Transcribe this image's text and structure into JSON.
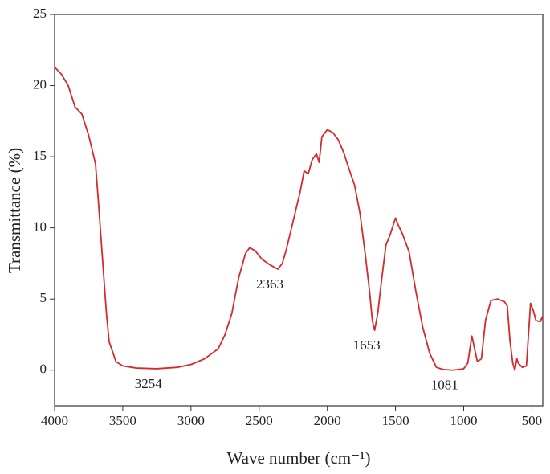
{
  "chart_data": {
    "type": "line",
    "xlabel": "Wave number (cm⁻¹)",
    "ylabel": "Transmittance (%)",
    "x": [
      4000,
      3950,
      3900,
      3850,
      3800,
      3750,
      3700,
      3680,
      3650,
      3620,
      3600,
      3550,
      3500,
      3400,
      3254,
      3100,
      3000,
      2900,
      2800,
      2750,
      2700,
      2650,
      2600,
      2570,
      2530,
      2480,
      2420,
      2363,
      2330,
      2300,
      2250,
      2200,
      2170,
      2140,
      2110,
      2080,
      2060,
      2040,
      2000,
      1960,
      1920,
      1880,
      1850,
      1800,
      1760,
      1720,
      1690,
      1670,
      1653,
      1630,
      1600,
      1570,
      1540,
      1500,
      1480,
      1450,
      1400,
      1350,
      1300,
      1250,
      1200,
      1150,
      1081,
      1000,
      970,
      940,
      920,
      900,
      870,
      840,
      800,
      750,
      700,
      680,
      660,
      640,
      625,
      610,
      600,
      570,
      540,
      510,
      490,
      470,
      440,
      420
    ],
    "series": [
      {
        "color": "#d42a2a",
        "values": [
          21.3,
          20.8,
          20.0,
          18.5,
          18.0,
          16.5,
          14.5,
          12.0,
          8.0,
          4.0,
          2.0,
          0.6,
          0.3,
          0.15,
          0.1,
          0.2,
          0.4,
          0.8,
          1.5,
          2.5,
          4.0,
          6.5,
          8.2,
          8.6,
          8.4,
          7.8,
          7.4,
          7.1,
          7.5,
          8.5,
          10.5,
          12.5,
          14.0,
          13.8,
          14.8,
          15.2,
          14.6,
          16.4,
          16.9,
          16.7,
          16.2,
          15.3,
          14.4,
          13.0,
          11.0,
          8.0,
          5.5,
          3.5,
          2.8,
          4.0,
          6.5,
          8.8,
          9.5,
          10.7,
          10.2,
          9.6,
          8.3,
          5.5,
          3.0,
          1.2,
          0.2,
          0.05,
          0.0,
          0.1,
          0.5,
          2.4,
          1.5,
          0.6,
          0.8,
          3.5,
          4.9,
          5.0,
          4.8,
          4.5,
          2.0,
          0.5,
          0.0,
          0.8,
          0.5,
          0.2,
          0.3,
          4.7,
          4.2,
          3.5,
          3.4,
          3.8
        ]
      }
    ],
    "xlim": [
      4000,
      420
    ],
    "ylim": [
      -2.5,
      25
    ],
    "xticks": [
      4000,
      3500,
      3000,
      2500,
      2000,
      1500,
      1000,
      500
    ],
    "yticks": [
      0,
      5,
      10,
      15,
      20,
      25
    ],
    "annotations": [
      3254,
      2363,
      1653,
      1081
    ]
  }
}
